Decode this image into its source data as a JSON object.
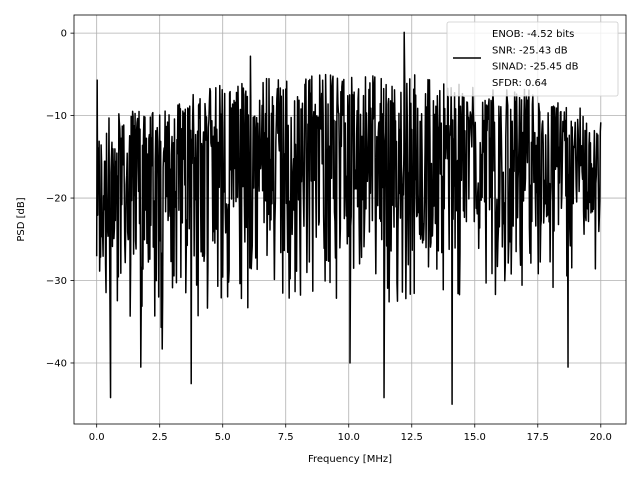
{
  "chart_data": {
    "type": "line",
    "title": "",
    "xlabel": "Frequency [MHz]",
    "ylabel": "PSD [dB]",
    "xlim": [
      -0.9,
      21.0
    ],
    "ylim": [
      -47.4,
      2.2
    ],
    "grid": true,
    "legend_position": "top-right",
    "x_ticks": [
      0.0,
      2.5,
      5.0,
      7.5,
      10.0,
      12.5,
      15.0,
      17.5,
      20.0
    ],
    "x_tick_labels": [
      "0.0",
      "2.5",
      "5.0",
      "7.5",
      "10.0",
      "12.5",
      "15.0",
      "17.5",
      "20.0"
    ],
    "y_ticks": [
      0,
      -10,
      -20,
      -30,
      -40
    ],
    "y_tick_labels": [
      "0",
      "−10",
      "−20",
      "−30",
      "−40"
    ],
    "legend_lines": [
      "ENOB: -4.52 bits",
      "SNR: -25.43 dB",
      "SINAD: -25.45 dB",
      "SFDR: 0.64"
    ],
    "line_color": "#000000",
    "series": [
      {
        "x_range": [
          0.0,
          20.0
        ],
        "num_points": 1025,
        "dense_noise": true,
        "baseline_envelope": [
          {
            "x": 0.0,
            "upper": -10,
            "median": -17,
            "lower": -28
          },
          {
            "x": 2.5,
            "upper": -9,
            "median": -16,
            "lower": -30
          },
          {
            "x": 5.0,
            "upper": -6,
            "median": -15,
            "lower": -28
          },
          {
            "x": 7.5,
            "upper": -5,
            "median": -14,
            "lower": -27
          },
          {
            "x": 10.0,
            "upper": -5,
            "median": -14,
            "lower": -26
          },
          {
            "x": 12.5,
            "upper": -5,
            "median": -14,
            "lower": -27
          },
          {
            "x": 15.0,
            "upper": -6,
            "median": -14,
            "lower": -26
          },
          {
            "x": 17.5,
            "upper": -7,
            "median": -15,
            "lower": -26
          },
          {
            "x": 20.0,
            "upper": -10,
            "median": -17,
            "lower": -24
          }
        ],
        "notable_points": [
          {
            "x": 0.02,
            "y": -5.7
          },
          {
            "x": 0.55,
            "y": -44.2
          },
          {
            "x": 1.75,
            "y": -40.5
          },
          {
            "x": 2.6,
            "y": -38.3
          },
          {
            "x": 3.75,
            "y": -42.5
          },
          {
            "x": 6.1,
            "y": -2.8
          },
          {
            "x": 10.05,
            "y": -40.0
          },
          {
            "x": 11.4,
            "y": -44.2
          },
          {
            "x": 12.2,
            "y": 0.1
          },
          {
            "x": 14.1,
            "y": -45.0
          },
          {
            "x": 18.7,
            "y": -40.5
          }
        ]
      }
    ]
  }
}
